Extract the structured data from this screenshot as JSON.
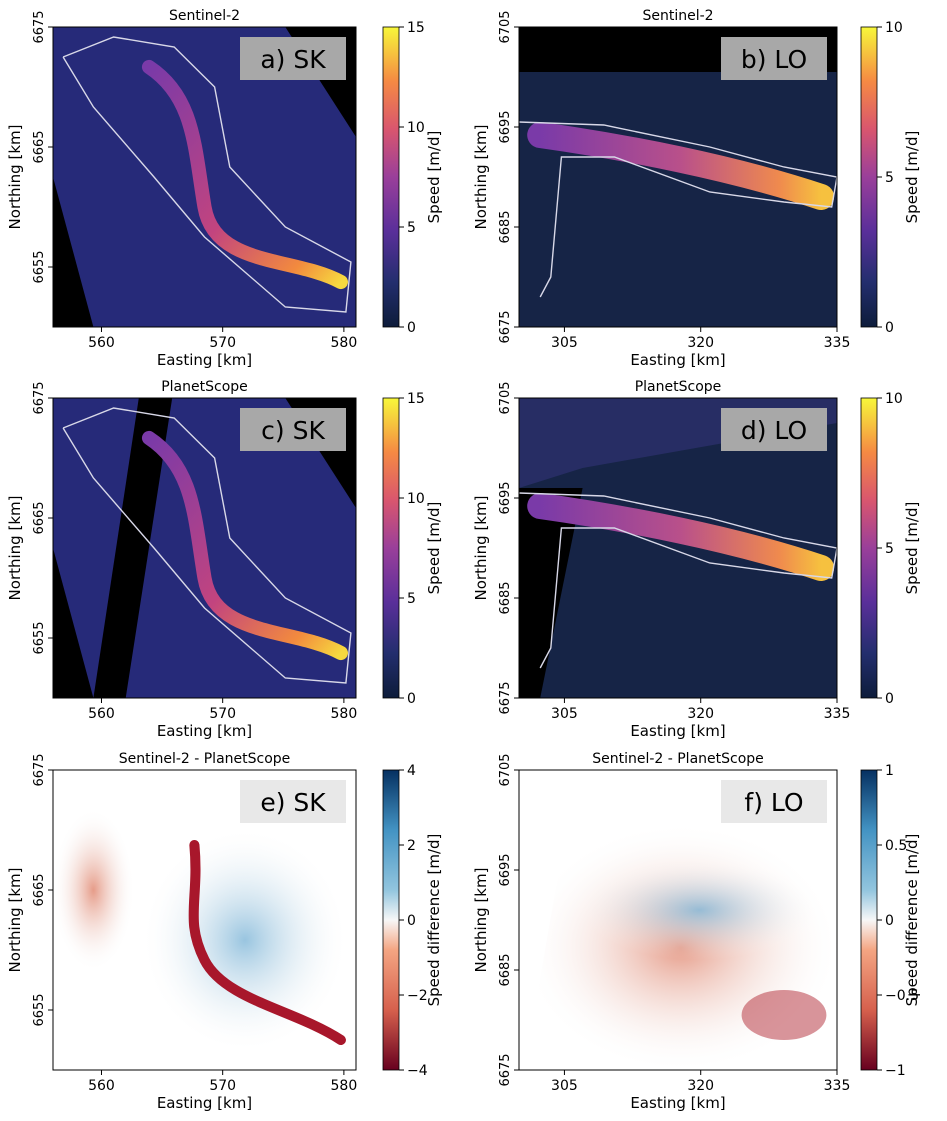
{
  "figure": {
    "xlabel": "Easting [km]",
    "ylabel": "Northing [km]"
  },
  "chart_data": [
    {
      "id": "a",
      "type": "heatmap",
      "title": "Sentinel-2",
      "label": "a) SK",
      "xlabel": "Easting [km]",
      "ylabel": "Northing [km]",
      "xlim": [
        556,
        581
      ],
      "ylim": [
        6650,
        6675
      ],
      "xticks": [
        560,
        570,
        580
      ],
      "yticks": [
        6655,
        6665,
        6675
      ],
      "colorbar": {
        "label": "Speed [m/d]",
        "colormap": "plasma",
        "range": [
          0,
          15
        ],
        "ticks": [
          0,
          5,
          10,
          15
        ]
      },
      "background": "#000000",
      "data_hint": "fast flow (10–15 m/d) near the glacier terminus at ~578 km E, 6653 km N"
    },
    {
      "id": "b",
      "type": "heatmap",
      "title": "Sentinel-2",
      "label": "b) LO",
      "xlabel": "Easting [km]",
      "ylabel": "Northing [km]",
      "xlim": [
        300,
        335
      ],
      "ylim": [
        6675,
        6705
      ],
      "xticks": [
        305,
        320,
        335
      ],
      "yticks": [
        6675,
        6685,
        6695,
        6705
      ],
      "colorbar": {
        "label": "Speed [m/d]",
        "colormap": "plasma",
        "range": [
          0,
          10
        ],
        "ticks": [
          0,
          5,
          10
        ]
      },
      "background": "#000000",
      "data_hint": "speed increases toward the terminus at ~332 km E, 6688 km N"
    },
    {
      "id": "c",
      "type": "heatmap",
      "title": "PlanetScope",
      "label": "c) SK",
      "xlabel": "Easting [km]",
      "ylabel": "Northing [km]",
      "xlim": [
        556,
        581
      ],
      "ylim": [
        6650,
        6675
      ],
      "xticks": [
        560,
        570,
        580
      ],
      "yticks": [
        6655,
        6665,
        6675
      ],
      "colorbar": {
        "label": "Speed [m/d]",
        "colormap": "plasma",
        "range": [
          0,
          15
        ],
        "ticks": [
          0,
          5,
          10,
          15
        ]
      },
      "background": "#000000"
    },
    {
      "id": "d",
      "type": "heatmap",
      "title": "PlanetScope",
      "label": "d) LO",
      "xlabel": "Easting [km]",
      "ylabel": "Northing [km]",
      "xlim": [
        300,
        335
      ],
      "ylim": [
        6675,
        6705
      ],
      "xticks": [
        305,
        320,
        335
      ],
      "yticks": [
        6675,
        6685,
        6695,
        6705
      ],
      "colorbar": {
        "label": "Speed [m/d]",
        "colormap": "plasma",
        "range": [
          0,
          10
        ],
        "ticks": [
          0,
          5,
          10
        ]
      },
      "background": "#000000"
    },
    {
      "id": "e",
      "type": "heatmap",
      "title": "Sentinel-2 - PlanetScope",
      "label": "e) SK",
      "xlabel": "Easting [km]",
      "ylabel": "Northing [km]",
      "xlim": [
        556,
        581
      ],
      "ylim": [
        6650,
        6675
      ],
      "xticks": [
        560,
        570,
        580
      ],
      "yticks": [
        6655,
        6665,
        6675
      ],
      "colorbar": {
        "label": "Speed difference [m/d]",
        "colormap": "RdBu",
        "range": [
          -4,
          4
        ],
        "ticks": [
          -4,
          -2,
          0,
          2,
          4
        ]
      },
      "background": "#ffffff",
      "data_hint": "strong negative difference (~-4 m/d) along the main trunk"
    },
    {
      "id": "f",
      "type": "heatmap",
      "title": "Sentinel-2 - PlanetScope",
      "label": "f) LO",
      "xlabel": "Easting [km]",
      "ylabel": "Northing [km]",
      "xlim": [
        300,
        335
      ],
      "ylim": [
        6675,
        6705
      ],
      "xticks": [
        305,
        320,
        335
      ],
      "yticks": [
        6675,
        6685,
        6695,
        6705
      ],
      "colorbar": {
        "label": "Speed difference [m/d]",
        "colormap": "RdBu",
        "range": [
          -1.0,
          1.0
        ],
        "ticks": [
          -1.0,
          -0.5,
          0.0,
          0.5,
          1.0
        ]
      },
      "background": "#ffffff"
    }
  ]
}
